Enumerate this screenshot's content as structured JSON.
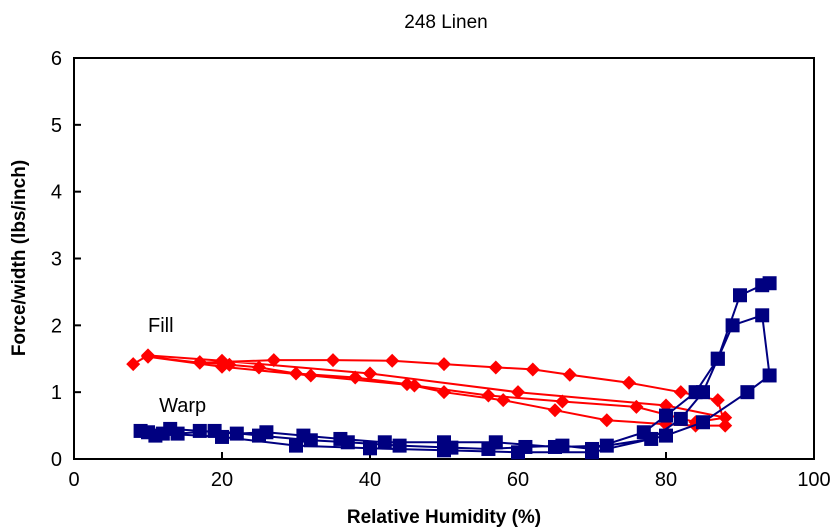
{
  "chart_data": {
    "type": "line",
    "title": "248 Linen",
    "xlabel": "Relative Humidity (%)",
    "ylabel": "Force/width (lbs/inch)",
    "xlim": [
      0,
      100
    ],
    "ylim": [
      0,
      6
    ],
    "xticks": [
      "0",
      "20",
      "40",
      "60",
      "80",
      "100"
    ],
    "yticks": [
      "0",
      "1",
      "2",
      "3",
      "4",
      "5",
      "6"
    ],
    "grid": false,
    "annotations": [
      {
        "text": "Fill",
        "x": 10,
        "y": 1.9
      },
      {
        "text": "Warp",
        "x": 11.5,
        "y": 0.7
      }
    ],
    "series": [
      {
        "color": "#ff0000",
        "marker": "diamond",
        "x": [
          8,
          10,
          20,
          40,
          60,
          80,
          88,
          84,
          76,
          66,
          56,
          46,
          32,
          20,
          10,
          17,
          27,
          35,
          43,
          50,
          57,
          62,
          67,
          75,
          82,
          87,
          88,
          84,
          80,
          72,
          65,
          58,
          50,
          45,
          38,
          30,
          25,
          21,
          17
        ],
        "y": [
          1.42,
          1.55,
          1.47,
          1.28,
          1.0,
          0.8,
          0.62,
          0.55,
          0.78,
          0.86,
          0.95,
          1.1,
          1.25,
          1.38,
          1.53,
          1.44,
          1.48,
          1.48,
          1.47,
          1.42,
          1.37,
          1.34,
          1.26,
          1.14,
          1.0,
          0.88,
          0.5,
          0.5,
          0.52,
          0.58,
          0.73,
          0.88,
          1.0,
          1.12,
          1.22,
          1.28,
          1.37,
          1.41,
          1.45
        ]
      },
      {
        "color": "#000080",
        "marker": "square",
        "x": [
          9,
          12,
          20,
          30,
          40,
          50,
          60,
          70,
          80,
          85,
          91,
          94,
          93,
          89,
          87,
          85,
          82,
          78,
          72,
          65,
          57,
          50,
          42,
          36,
          31,
          26,
          22,
          17,
          13,
          10,
          11,
          14,
          19,
          25,
          32,
          37,
          44,
          51,
          56,
          61,
          66,
          70,
          77,
          80,
          84,
          87,
          90,
          93,
          94
        ],
        "y": [
          0.42,
          0.38,
          0.33,
          0.2,
          0.16,
          0.13,
          0.1,
          0.1,
          0.35,
          0.55,
          1.0,
          1.25,
          2.15,
          2.0,
          1.5,
          1.0,
          0.6,
          0.3,
          0.2,
          0.18,
          0.25,
          0.25,
          0.25,
          0.3,
          0.35,
          0.4,
          0.38,
          0.42,
          0.45,
          0.4,
          0.35,
          0.38,
          0.42,
          0.35,
          0.28,
          0.25,
          0.2,
          0.17,
          0.15,
          0.18,
          0.2,
          0.15,
          0.4,
          0.65,
          1.0,
          1.5,
          2.45,
          2.6,
          2.63
        ]
      }
    ]
  }
}
